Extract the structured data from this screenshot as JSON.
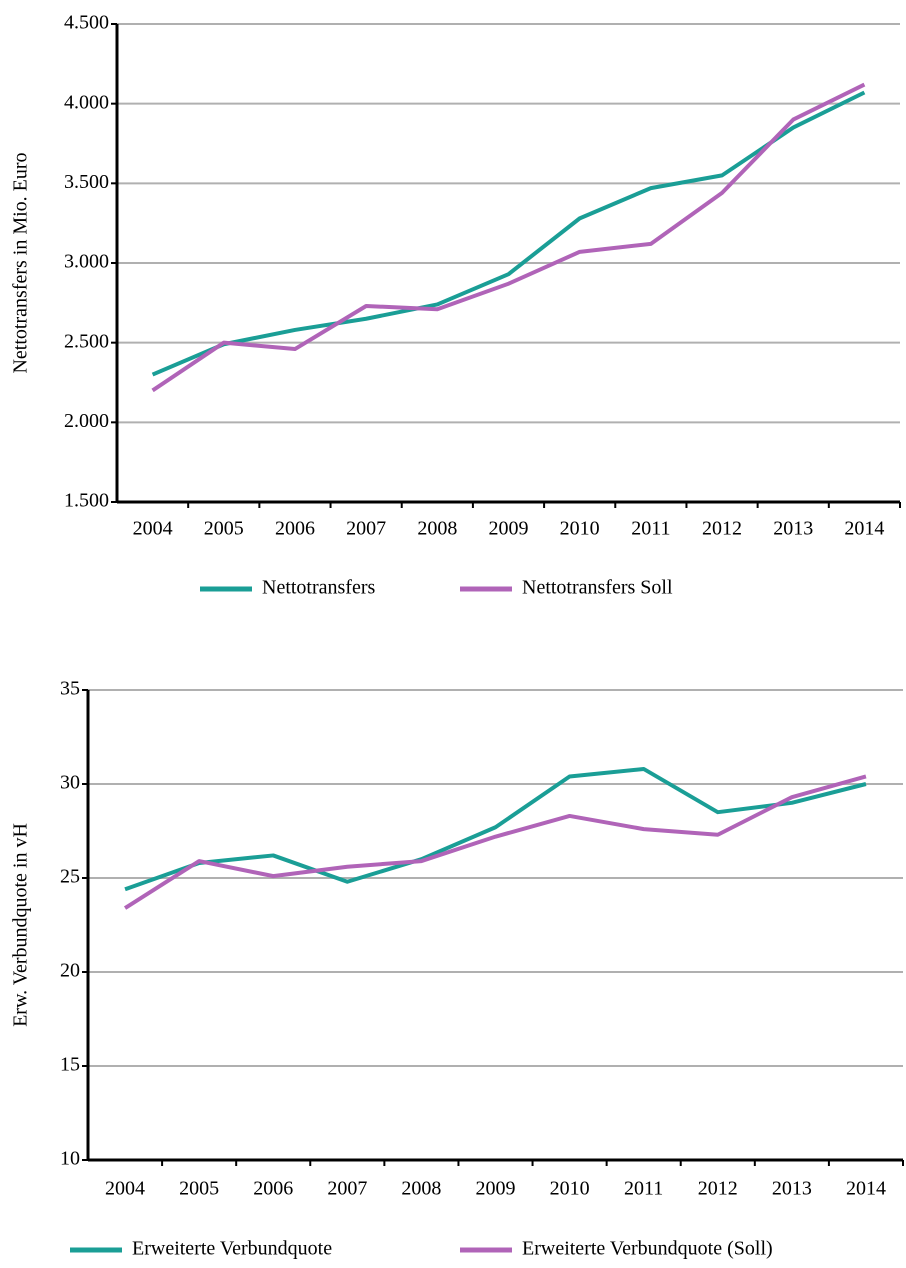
{
  "chart_data": [
    {
      "type": "line",
      "y_label": "Nettotransfers in Mio. Euro",
      "categories": [
        "2004",
        "2005",
        "2006",
        "2007",
        "2008",
        "2009",
        "2010",
        "2011",
        "2012",
        "2013",
        "2014"
      ],
      "series": [
        {
          "name": "Nettotransfers",
          "color": "#1a9e96",
          "values": [
            2300,
            2490,
            2580,
            2650,
            2740,
            2930,
            3280,
            3470,
            3550,
            3850,
            4070
          ]
        },
        {
          "name": "Nettotransfers Soll",
          "color": "#b064b8",
          "values": [
            2200,
            2500,
            2460,
            2730,
            2710,
            2870,
            3070,
            3120,
            3440,
            3900,
            4120
          ]
        }
      ],
      "ylim": [
        1500,
        4500
      ],
      "yticks": [
        {
          "value": 1500,
          "label": "1.500"
        },
        {
          "value": 2000,
          "label": "2.000"
        },
        {
          "value": 2500,
          "label": "2.500"
        },
        {
          "value": 3000,
          "label": "3.000"
        },
        {
          "value": 3500,
          "label": "3.500"
        },
        {
          "value": 4000,
          "label": "4.000"
        },
        {
          "value": 4500,
          "label": "4.500"
        }
      ],
      "grid": true,
      "legend": "bottom"
    },
    {
      "type": "line",
      "y_label": "Erw. Verbundquote in vH",
      "categories": [
        "2004",
        "2005",
        "2006",
        "2007",
        "2008",
        "2009",
        "2010",
        "2011",
        "2012",
        "2013",
        "2014"
      ],
      "series": [
        {
          "name": "Erweiterte Verbundquote",
          "color": "#1a9e96",
          "values": [
            24.4,
            25.8,
            26.2,
            24.8,
            26.0,
            27.7,
            30.4,
            30.8,
            28.5,
            29.0,
            30.0
          ]
        },
        {
          "name": "Erweiterte Verbundquote (Soll)",
          "color": "#b064b8",
          "values": [
            23.4,
            25.9,
            25.1,
            25.6,
            25.9,
            27.2,
            28.3,
            27.6,
            27.3,
            29.3,
            30.4
          ]
        }
      ],
      "ylim": [
        10,
        35
      ],
      "yticks": [
        10,
        15,
        20,
        25,
        30,
        35
      ],
      "grid": true,
      "legend": "bottom"
    }
  ]
}
